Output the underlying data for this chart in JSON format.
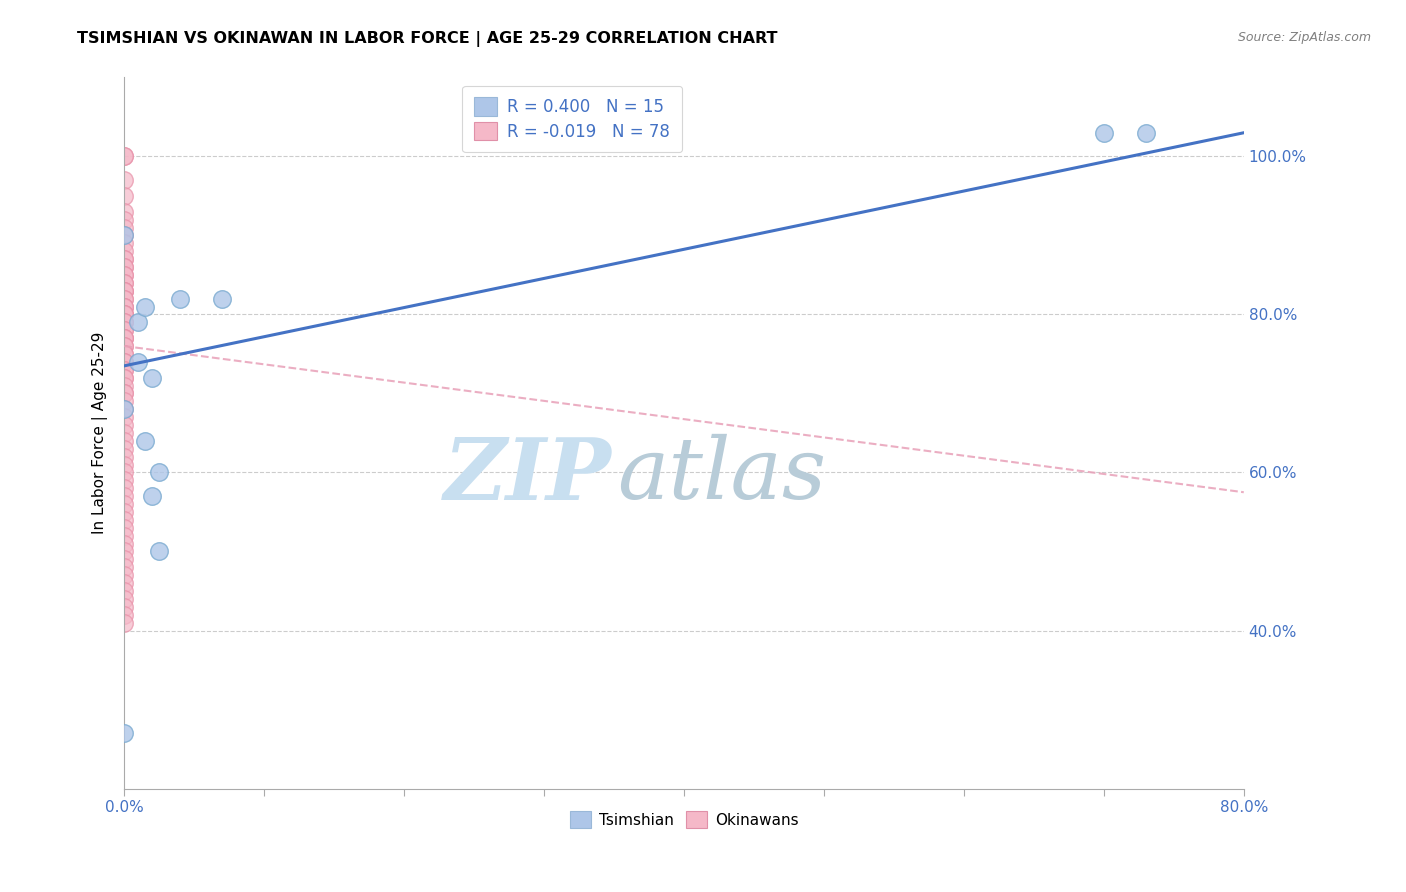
{
  "title": "TSIMSHIAN VS OKINAWAN IN LABOR FORCE | AGE 25-29 CORRELATION CHART",
  "source": "Source: ZipAtlas.com",
  "ylabel": "In Labor Force | Age 25-29",
  "xlim": [
    0.0,
    0.8
  ],
  "ylim": [
    0.2,
    1.1
  ],
  "background_color": "#ffffff",
  "tsimshian_color": "#aec6e8",
  "okinawan_color": "#f5b8c8",
  "tsimshian_edge_color": "#7aaad0",
  "okinawan_edge_color": "#e890a8",
  "tsimshian_line_color": "#4472c4",
  "okinawan_line_color": "#e8a0b8",
  "R_tsimshian": 0.4,
  "N_tsimshian": 15,
  "R_okinawan": -0.019,
  "N_okinawan": 78,
  "legend_text_color": "#4472c4",
  "tsimshian_points_x": [
    0.0,
    0.0,
    0.0,
    0.01,
    0.01,
    0.015,
    0.015,
    0.02,
    0.02,
    0.025,
    0.025,
    0.04,
    0.07,
    0.7,
    0.73
  ],
  "tsimshian_points_y": [
    0.27,
    0.68,
    0.9,
    0.74,
    0.79,
    0.81,
    0.64,
    0.57,
    0.72,
    0.5,
    0.6,
    0.82,
    0.82,
    1.03,
    1.03
  ],
  "okinawan_points_x": [
    0.0,
    0.0,
    0.0,
    0.0,
    0.0,
    0.0,
    0.0,
    0.0,
    0.0,
    0.0,
    0.0,
    0.0,
    0.0,
    0.0,
    0.0,
    0.0,
    0.0,
    0.0,
    0.0,
    0.0,
    0.0,
    0.0,
    0.0,
    0.0,
    0.0,
    0.0,
    0.0,
    0.0,
    0.0,
    0.0,
    0.0,
    0.0,
    0.0,
    0.0,
    0.0,
    0.0,
    0.0,
    0.0,
    0.0,
    0.0,
    0.0,
    0.0,
    0.0,
    0.0,
    0.0,
    0.0,
    0.0,
    0.0,
    0.0,
    0.0,
    0.0,
    0.0,
    0.0,
    0.0,
    0.0,
    0.0,
    0.0,
    0.0,
    0.0,
    0.0,
    0.0,
    0.0,
    0.0,
    0.0,
    0.0,
    0.0,
    0.0,
    0.0,
    0.0,
    0.0,
    0.0,
    0.0,
    0.0,
    0.0,
    0.0,
    0.0,
    0.0,
    0.0
  ],
  "okinawan_points_y": [
    1.0,
    1.0,
    0.97,
    0.95,
    0.93,
    0.92,
    0.91,
    0.9,
    0.89,
    0.88,
    0.87,
    0.87,
    0.86,
    0.86,
    0.85,
    0.85,
    0.84,
    0.84,
    0.83,
    0.83,
    0.83,
    0.82,
    0.82,
    0.81,
    0.81,
    0.81,
    0.8,
    0.8,
    0.8,
    0.79,
    0.79,
    0.78,
    0.78,
    0.77,
    0.77,
    0.77,
    0.76,
    0.76,
    0.75,
    0.75,
    0.74,
    0.74,
    0.73,
    0.73,
    0.72,
    0.72,
    0.71,
    0.7,
    0.7,
    0.69,
    0.68,
    0.67,
    0.66,
    0.65,
    0.64,
    0.63,
    0.62,
    0.61,
    0.6,
    0.59,
    0.58,
    0.57,
    0.56,
    0.55,
    0.54,
    0.53,
    0.52,
    0.51,
    0.5,
    0.49,
    0.48,
    0.47,
    0.46,
    0.45,
    0.44,
    0.43,
    0.42,
    0.41
  ],
  "ts_line_x0": 0.0,
  "ts_line_x1": 0.8,
  "ts_line_y0": 0.735,
  "ts_line_y1": 1.03,
  "ok_line_x0": 0.0,
  "ok_line_x1": 0.8,
  "ok_line_y0": 0.76,
  "ok_line_y1": 0.575,
  "ytick_vals": [
    0.4,
    0.6,
    0.8,
    1.0
  ],
  "grid_color": "#cccccc",
  "watermark_zip_color": "#c8dff0",
  "watermark_atlas_color": "#c8dce8"
}
